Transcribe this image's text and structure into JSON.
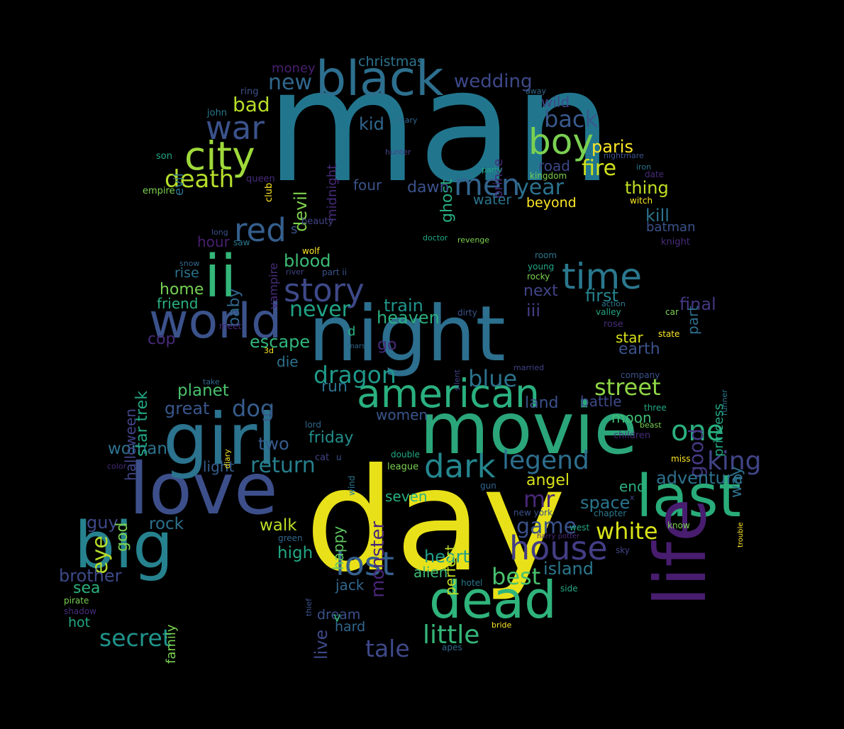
{
  "words": [
    {
      "text": "man",
      "color": "#21768e"
    },
    {
      "text": "day",
      "color": "#e8e11a"
    },
    {
      "text": "night",
      "color": "#2c6f8e"
    },
    {
      "text": "movie",
      "color": "#2ba67a"
    },
    {
      "text": "love",
      "color": "#3d4f8a"
    },
    {
      "text": "girl",
      "color": "#2b738e"
    },
    {
      "text": "last",
      "color": "#29ac7a"
    },
    {
      "text": "big",
      "color": "#26828e"
    },
    {
      "text": "dead",
      "color": "#2fb47c"
    },
    {
      "text": "life",
      "color": "#481d6f"
    },
    {
      "text": "black",
      "color": "#2d6f8e"
    },
    {
      "text": "world",
      "color": "#3b528b"
    },
    {
      "text": "ii",
      "color": "#34b679"
    },
    {
      "text": "city",
      "color": "#9fda3a"
    },
    {
      "text": "boy",
      "color": "#7ad151"
    },
    {
      "text": "american",
      "color": "#2ab07f"
    },
    {
      "text": "story",
      "color": "#3e4989"
    },
    {
      "text": "time",
      "color": "#2a788e"
    },
    {
      "text": "house",
      "color": "#433e85"
    },
    {
      "text": "lost",
      "color": "#355f8d"
    },
    {
      "text": "dark",
      "color": "#24868e"
    },
    {
      "text": "men",
      "color": "#32648e"
    },
    {
      "text": "war",
      "color": "#3b528b"
    },
    {
      "text": "red",
      "color": "#355f8d"
    },
    {
      "text": "legend",
      "color": "#2e6e8e"
    },
    {
      "text": "death",
      "color": "#b5de2b"
    },
    {
      "text": "one",
      "color": "#2ab07f"
    },
    {
      "text": "little",
      "color": "#35b779"
    },
    {
      "text": "dragon",
      "color": "#1f998a"
    },
    {
      "text": "street",
      "color": "#8ed645"
    },
    {
      "text": "king",
      "color": "#414487"
    },
    {
      "text": "white",
      "color": "#d8e219"
    },
    {
      "text": "back",
      "color": "#38598c"
    },
    {
      "text": "never",
      "color": "#20a486"
    },
    {
      "text": "return",
      "color": "#277f8e"
    },
    {
      "text": "blue",
      "color": "#2c728e"
    },
    {
      "text": "tale",
      "color": "#3e4989"
    },
    {
      "text": "secret",
      "color": "#1f948c"
    },
    {
      "text": "best",
      "color": "#4ac16d"
    },
    {
      "text": "game",
      "color": "#3b528b"
    },
    {
      "text": "mr",
      "color": "#482878"
    },
    {
      "text": "year",
      "color": "#2c728e"
    },
    {
      "text": "new",
      "color": "#30688e"
    },
    {
      "text": "fire",
      "color": "#d0e11c"
    },
    {
      "text": "good",
      "color": "#443983"
    },
    {
      "text": "eye",
      "color": "#b5de2b"
    },
    {
      "text": "wedding",
      "color": "#3e4989"
    },
    {
      "text": "island",
      "color": "#2a788e"
    },
    {
      "text": "dog",
      "color": "#365d8d"
    },
    {
      "text": "adventure",
      "color": "#2c728e"
    },
    {
      "text": "escape",
      "color": "#31b57b"
    },
    {
      "text": "brother",
      "color": "#3e4a89"
    },
    {
      "text": "bad",
      "color": "#b8de29"
    },
    {
      "text": "home",
      "color": "#75d054"
    },
    {
      "text": "first",
      "color": "#25838e"
    },
    {
      "text": "blood",
      "color": "#3dbc74"
    },
    {
      "text": "heart",
      "color": "#1f9e89"
    },
    {
      "text": "paris",
      "color": "#fde725"
    },
    {
      "text": "space",
      "color": "#2b758e"
    },
    {
      "text": "angel",
      "color": "#d8e219"
    },
    {
      "text": "planet",
      "color": "#4ac16d"
    },
    {
      "text": "heaven",
      "color": "#2ab07f"
    },
    {
      "text": "train",
      "color": "#1f958b"
    },
    {
      "text": "woman",
      "color": "#2c728e"
    },
    {
      "text": "friday",
      "color": "#218f8d"
    },
    {
      "text": "two",
      "color": "#365c8d"
    },
    {
      "text": "great",
      "color": "#39568c"
    },
    {
      "text": "thing",
      "color": "#c2df23"
    },
    {
      "text": "kill",
      "color": "#2c728e"
    },
    {
      "text": "monster",
      "color": "#482677"
    },
    {
      "text": "walk",
      "color": "#bade28"
    },
    {
      "text": "kid",
      "color": "#31678e"
    },
    {
      "text": "christmas",
      "color": "#2c738e"
    },
    {
      "text": "sea",
      "color": "#2ab07f"
    },
    {
      "text": "rock",
      "color": "#2d708e"
    },
    {
      "text": "final",
      "color": "#453781"
    },
    {
      "text": "earth",
      "color": "#3b528b"
    },
    {
      "text": "guy",
      "color": "#3e4989"
    },
    {
      "text": "hot",
      "color": "#22a884"
    },
    {
      "text": "high",
      "color": "#22a884"
    },
    {
      "text": "star trek",
      "color": "#22a884"
    },
    {
      "text": "devil",
      "color": "#7fd34e"
    },
    {
      "text": "ghost",
      "color": "#29af7f"
    },
    {
      "text": "dawn",
      "color": "#3b528b"
    },
    {
      "text": "part",
      "color": "#2e6e8e"
    },
    {
      "text": "next",
      "color": "#414487"
    },
    {
      "text": "run",
      "color": "#2c728e"
    },
    {
      "text": "iii",
      "color": "#433e85"
    },
    {
      "text": "live",
      "color": "#3e4989"
    },
    {
      "text": "perfect",
      "color": "#c2df23"
    },
    {
      "text": "prince",
      "color": "#472c7a"
    },
    {
      "text": "baby",
      "color": "#31678e"
    },
    {
      "text": "wild",
      "color": "#3e4989"
    },
    {
      "text": "jack",
      "color": "#31678e"
    },
    {
      "text": "god",
      "color": "#7ad151"
    },
    {
      "text": "land",
      "color": "#3b528b"
    },
    {
      "text": "battle",
      "color": "#3e4989"
    },
    {
      "text": "seven",
      "color": "#2ab07f"
    },
    {
      "text": "land2",
      "color": "#3b528b"
    },
    {
      "text": "women",
      "color": "#39568c"
    },
    {
      "text": "happy",
      "color": "#5ec962"
    },
    {
      "text": "light",
      "color": "#355f8d"
    },
    {
      "text": "go",
      "color": "#472c7a"
    },
    {
      "text": "way",
      "color": "#2c728e"
    },
    {
      "text": "alien",
      "color": "#3dbc74"
    },
    {
      "text": "cop",
      "color": "#472c7a"
    },
    {
      "text": "end",
      "color": "#2ab07f"
    },
    {
      "text": "midnight",
      "color": "#472c7a"
    },
    {
      "text": "hour",
      "color": "#481f70"
    },
    {
      "text": "friend",
      "color": "#2ab07f"
    },
    {
      "text": "princess",
      "color": "#22a884"
    },
    {
      "text": "star",
      "color": "#d8e219"
    },
    {
      "text": "halloween",
      "color": "#414487"
    },
    {
      "text": "die",
      "color": "#2c728e"
    },
    {
      "text": "beyond",
      "color": "#fde725"
    },
    {
      "text": "road",
      "color": "#3e4989"
    },
    {
      "text": "water",
      "color": "#2b758e"
    },
    {
      "text": "four",
      "color": "#3b528b"
    },
    {
      "text": "hard",
      "color": "#31678e"
    },
    {
      "text": "dream",
      "color": "#3b528b"
    },
    {
      "text": "moon",
      "color": "#3dbc74"
    },
    {
      "text": "money",
      "color": "#481f70"
    },
    {
      "text": "rise",
      "color": "#2c728e"
    },
    {
      "text": "batman",
      "color": "#3b528b"
    },
    {
      "text": "vampire",
      "color": "#472c7a"
    },
    {
      "text": "evil",
      "color": "#2c728e"
    },
    {
      "text": "family",
      "color": "#7ad151"
    },
    {
      "text": "v",
      "color": "#35b779"
    },
    {
      "text": "d",
      "color": "#2ab07f"
    },
    {
      "text": "s",
      "color": "#3b528b"
    }
  ],
  "small_words": [
    "ring",
    "john",
    "son",
    "empire",
    "queen",
    "club",
    "mary",
    "hunter",
    "nightmare",
    "iron",
    "party",
    "kingdom",
    "date",
    "witch",
    "away",
    "beauty",
    "long",
    "saw",
    "doctor",
    "revenge",
    "knight",
    "wolf",
    "snow",
    "river",
    "part ii",
    "room",
    "young",
    "rocky",
    "meet",
    "3d",
    "mars",
    "silent",
    "dirty",
    "action",
    "valley",
    "car",
    "rose",
    "state",
    "take",
    "married",
    "company",
    "runner",
    "three",
    "beast",
    "children",
    "diary",
    "lord",
    "cat",
    "u",
    "wind",
    "double",
    "league",
    "color",
    "miss",
    "gun",
    "x",
    "new york",
    "chapter",
    "west",
    "know",
    "harry potter",
    "trouble",
    "green",
    "sky",
    "thief",
    "hotel",
    "side",
    "pirate",
    "shadow",
    "bride",
    "apes"
  ]
}
